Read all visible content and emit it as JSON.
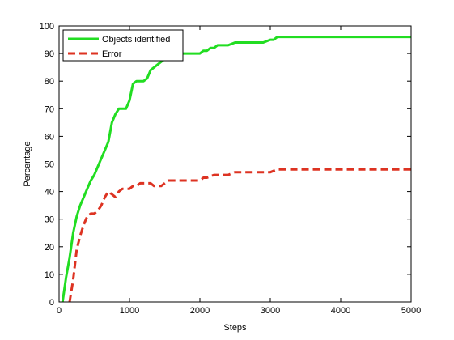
{
  "chart_data": {
    "type": "line",
    "title": "",
    "xlabel": "Steps",
    "ylabel": "Percentage",
    "xlim": [
      0,
      5000
    ],
    "ylim": [
      0,
      100
    ],
    "xticks": [
      0,
      1000,
      2000,
      3000,
      4000,
      5000
    ],
    "yticks": [
      0,
      10,
      20,
      30,
      40,
      50,
      60,
      70,
      80,
      90,
      100
    ],
    "grid": false,
    "legend_position": "top-left",
    "series": [
      {
        "name": "Objects identified",
        "color": "#22dd22",
        "style": "solid",
        "x": [
          50,
          100,
          150,
          200,
          250,
          300,
          350,
          400,
          450,
          500,
          550,
          600,
          650,
          700,
          750,
          800,
          850,
          900,
          950,
          1000,
          1050,
          1100,
          1150,
          1200,
          1250,
          1300,
          1350,
          1400,
          1450,
          1500,
          1550,
          1600,
          1650,
          1700,
          1800,
          1900,
          2000,
          2050,
          2100,
          2150,
          2200,
          2250,
          2300,
          2400,
          2500,
          2600,
          2700,
          2800,
          2900,
          3000,
          3050,
          3100,
          3200,
          3400,
          3600,
          3800,
          4000,
          4200,
          4400,
          4600,
          4800,
          5000
        ],
        "values": [
          0,
          9,
          16,
          25,
          31,
          35,
          38,
          41,
          44,
          46,
          49,
          52,
          55,
          58,
          65,
          68,
          70,
          70,
          70,
          73,
          79,
          80,
          80,
          80,
          81,
          84,
          85,
          86,
          87,
          88,
          88,
          89,
          90,
          90,
          90,
          90,
          90,
          91,
          91,
          92,
          92,
          93,
          93,
          93,
          94,
          94,
          94,
          94,
          94,
          95,
          95,
          96,
          96,
          96,
          96,
          96,
          96,
          96,
          96,
          96,
          96,
          96
        ]
      },
      {
        "name": "Error",
        "color": "#dd3322",
        "style": "dashed",
        "x": [
          150,
          200,
          250,
          300,
          350,
          400,
          450,
          500,
          550,
          600,
          650,
          700,
          750,
          800,
          850,
          900,
          950,
          1000,
          1050,
          1100,
          1150,
          1200,
          1250,
          1300,
          1350,
          1400,
          1450,
          1500,
          1550,
          1600,
          1700,
          1800,
          1900,
          2000,
          2050,
          2100,
          2200,
          2300,
          2400,
          2500,
          2600,
          2700,
          2800,
          2900,
          3000,
          3100,
          3200,
          3400,
          3600,
          3800,
          4000,
          4200,
          4400,
          4600,
          4800,
          5000
        ],
        "values": [
          0,
          8,
          19,
          24,
          28,
          31,
          32,
          32,
          33,
          35,
          38,
          40,
          39,
          38,
          40,
          41,
          41,
          41,
          42,
          42,
          43,
          43,
          43,
          43,
          42,
          42,
          42,
          43,
          44,
          44,
          44,
          44,
          44,
          44,
          45,
          45,
          46,
          46,
          46,
          47,
          47,
          47,
          47,
          47,
          47,
          48,
          48,
          48,
          48,
          48,
          48,
          48,
          48,
          48,
          48,
          48
        ]
      }
    ]
  }
}
